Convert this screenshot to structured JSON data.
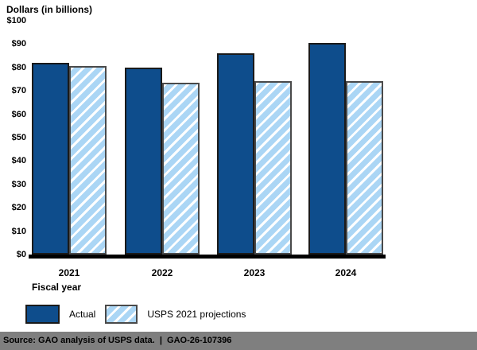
{
  "chart_data": {
    "type": "bar",
    "title": "Dollars (in billions)",
    "xlabel": "Fiscal year",
    "ylabel": "Dollars (in billions)",
    "categories": [
      "2021",
      "2022",
      "2023",
      "2024"
    ],
    "series": [
      {
        "name": "Actual",
        "values": [
          82,
          80,
          86,
          90.5
        ],
        "color": "#0E4D8C",
        "pattern": "solid"
      },
      {
        "name": "USPS 2021 projections",
        "values": [
          80.5,
          73.5,
          74,
          74
        ],
        "color": "#ABD6F5",
        "pattern": "diagonal-hatch",
        "hatch_color": "#FFFFFF"
      }
    ],
    "ylim": [
      0,
      100
    ],
    "ytick_step": 10,
    "yticks": [
      "$100",
      "$90",
      "$80",
      "$70",
      "$60",
      "$50",
      "$40",
      "$30",
      "$20",
      "$10",
      "$0"
    ],
    "grid": false,
    "legend_position": "below-chart"
  },
  "legend": {
    "items": [
      {
        "label": "Actual",
        "swatch": "solid-dark-blue"
      },
      {
        "label": "USPS 2021 projections",
        "swatch": "hatched-light-blue"
      }
    ]
  },
  "footer": {
    "source_text": "Source: GAO analysis of USPS data.  |  GAO-26-107396",
    "background": "#7F7F7F"
  },
  "colors": {
    "actual_bar": "#0E4D8C",
    "projection_bar": "#ABD6F5",
    "bar_border": "#1A1A1A",
    "hatch_border": "#4A4A4A",
    "axis": "#000000",
    "source_strip": "#7F7F7F"
  }
}
